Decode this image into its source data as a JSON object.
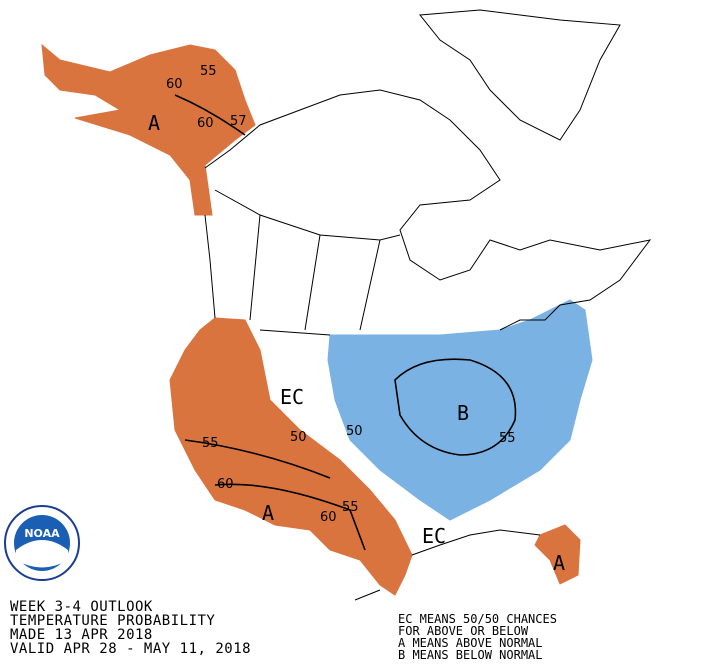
{
  "header": {
    "lines": [
      "WEEK 3-4 OUTLOOK",
      "TEMPERATURE PROBABILITY",
      "MADE  13 APR 2018",
      "VALID  APR 28 - MAY 11, 2018"
    ]
  },
  "legend": {
    "lines": [
      "EC MEANS 50/50 CHANCES",
      "FOR ABOVE OR BELOW",
      "A MEANS ABOVE NORMAL",
      "B MEANS BELOW NORMAL"
    ]
  },
  "logo": {
    "label": "NOAA"
  },
  "map": {
    "region_labels": [
      "A",
      "A",
      "EC",
      "B",
      "EC",
      "A"
    ],
    "contour_labels": [
      55,
      60,
      57,
      60,
      55,
      50,
      60,
      60,
      55,
      50,
      55
    ]
  }
}
